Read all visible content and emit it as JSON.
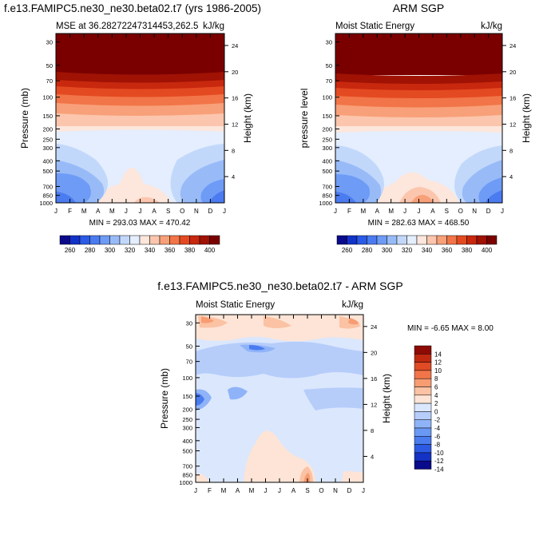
{
  "page": {
    "title_left": "f.e13.FAMIPC5.ne30_ne30.beta02.t7 (yrs 1986-2005)",
    "title_right": "ARM SGP",
    "title_bottom": "f.e13.FAMIPC5.ne30_ne30.beta02.t7 - ARM SGP"
  },
  "chart_data": [
    {
      "type": "heatmap",
      "panel": "model",
      "title": "MSE at 36.28272247314453,262.5",
      "units_label": "kJ/kg",
      "ylabel": "Pressure (mb)",
      "ylabel_right": "Height (km)",
      "x_ticks": [
        "J",
        "F",
        "M",
        "A",
        "M",
        "J",
        "J",
        "A",
        "S",
        "O",
        "N",
        "D",
        "J"
      ],
      "y_ticks": [
        "30",
        "50",
        "70",
        "100",
        "150",
        "200",
        "250",
        "300",
        "400",
        "500",
        "700",
        "850",
        "1000"
      ],
      "y_ticks_right": [
        "24",
        "20",
        "16",
        "12",
        "8",
        "4"
      ],
      "minmax": "MIN = 293.03  MAX = 470.42",
      "colorbar_labels": [
        "260",
        "280",
        "300",
        "320",
        "340",
        "360",
        "380",
        "400"
      ],
      "levels": [
        260,
        270,
        280,
        290,
        300,
        310,
        320,
        330,
        340,
        350,
        360,
        370,
        380,
        390,
        400
      ],
      "y_range_mb": [
        1000,
        25
      ],
      "min": 293.03,
      "max": 470.42
    },
    {
      "type": "heatmap",
      "panel": "observation",
      "title": "Moist Static Energy",
      "units_label": "kJ/kg",
      "ylabel": "pressure level",
      "ylabel_right": "Height (km)",
      "x_ticks": [
        "J",
        "F",
        "M",
        "A",
        "M",
        "J",
        "J",
        "A",
        "S",
        "O",
        "N",
        "D",
        "J"
      ],
      "y_ticks": [
        "30",
        "50",
        "70",
        "100",
        "150",
        "200",
        "250",
        "300",
        "400",
        "500",
        "700",
        "850",
        "1000"
      ],
      "y_ticks_right": [
        "24",
        "20",
        "16",
        "12",
        "8",
        "4"
      ],
      "minmax": "MIN = 282.63  MAX = 468.50",
      "colorbar_labels": [
        "260",
        "280",
        "300",
        "320",
        "340",
        "360",
        "380",
        "400"
      ],
      "levels": [
        260,
        270,
        280,
        290,
        300,
        310,
        320,
        330,
        340,
        350,
        360,
        370,
        380,
        390,
        400
      ],
      "y_range_mb": [
        1000,
        25
      ],
      "min": 282.63,
      "max": 468.5
    },
    {
      "type": "heatmap",
      "panel": "difference",
      "title": "Moist Static Energy",
      "units_label": "kJ/kg",
      "ylabel": "Pressure (mb)",
      "ylabel_right": "Height (km)",
      "x_ticks": [
        "J",
        "F",
        "M",
        "A",
        "M",
        "J",
        "J",
        "A",
        "S",
        "O",
        "N",
        "D",
        "J"
      ],
      "y_ticks": [
        "30",
        "50",
        "70",
        "100",
        "150",
        "200",
        "250",
        "300",
        "400",
        "500",
        "700",
        "850",
        "1000"
      ],
      "y_ticks_right": [
        "24",
        "20",
        "16",
        "12",
        "8",
        "4"
      ],
      "minmax": "MIN =  -6.65 MAX =    8.00",
      "colorbar_labels": [
        "14",
        "12",
        "10",
        "8",
        "6",
        "4",
        "2",
        "0",
        "-2",
        "-4",
        "-6",
        "-8",
        "-10",
        "-12",
        "-14"
      ],
      "levels": [
        -14,
        -12,
        -10,
        -8,
        -6,
        -4,
        -2,
        0,
        2,
        4,
        6,
        8,
        10,
        12,
        14
      ],
      "y_range_mb": [
        1000,
        25
      ],
      "min": -6.65,
      "max": 8.0
    }
  ],
  "colors": {
    "abs_palette": [
      "#0a0a8c",
      "#1232c8",
      "#2a5ae6",
      "#4a7bf0",
      "#6e9bf5",
      "#98bbf8",
      "#c2d8fb",
      "#e4eefe",
      "#fde6dc",
      "#fbc6ad",
      "#f8a079",
      "#f17548",
      "#e44a22",
      "#c8280e",
      "#a01204",
      "#7a0000"
    ],
    "diff_palette": [
      "#0a0a8c",
      "#1432c4",
      "#2c5ae4",
      "#4a7cf0",
      "#6a98f5",
      "#8fb3f8",
      "#b6cdfa",
      "#dbe7fd",
      "#fde4d6",
      "#fbc2a3",
      "#f89c72",
      "#f2754a",
      "#e04a24",
      "#c02810",
      "#8e0a04"
    ]
  }
}
